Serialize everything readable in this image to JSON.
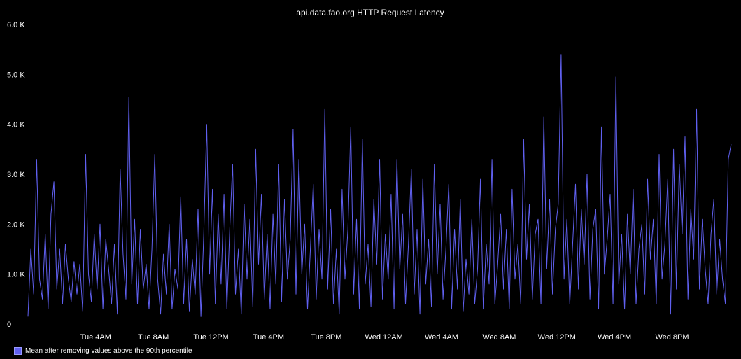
{
  "chart_data": {
    "type": "line",
    "title": "api.data.fao.org HTTP Request Latency",
    "ylim": [
      0,
      6000
    ],
    "y_ticks": [
      {
        "value": 0,
        "label": "0"
      },
      {
        "value": 1000,
        "label": "1.0 K"
      },
      {
        "value": 2000,
        "label": "2.0 K"
      },
      {
        "value": 3000,
        "label": "3.0 K"
      },
      {
        "value": 4000,
        "label": "4.0 K"
      },
      {
        "value": 5000,
        "label": "5.0 K"
      },
      {
        "value": 6000,
        "label": "6.0 K"
      }
    ],
    "xlim": [
      -4.7,
      44.2
    ],
    "x_ticks": [
      {
        "value": 0,
        "label": "Tue  4AM"
      },
      {
        "value": 4,
        "label": "Tue  8AM"
      },
      {
        "value": 8,
        "label": "Tue 12PM"
      },
      {
        "value": 12,
        "label": "Tue  4PM"
      },
      {
        "value": 16,
        "label": "Tue  8PM"
      },
      {
        "value": 20,
        "label": "Wed 12AM"
      },
      {
        "value": 24,
        "label": "Wed  4AM"
      },
      {
        "value": 28,
        "label": "Wed  8AM"
      },
      {
        "value": 32,
        "label": "Wed 12PM"
      },
      {
        "value": 36,
        "label": "Wed  4PM"
      },
      {
        "value": 40,
        "label": "Wed  8PM"
      }
    ],
    "series": [
      {
        "name": "Mean after removing values above the 90th percentile",
        "color": "#6060f0",
        "points": [
          [
            -4.7,
            150
          ],
          [
            -4.5,
            1500
          ],
          [
            -4.3,
            600
          ],
          [
            -4.1,
            3300
          ],
          [
            -3.9,
            900
          ],
          [
            -3.7,
            500
          ],
          [
            -3.5,
            1800
          ],
          [
            -3.3,
            300
          ],
          [
            -3.1,
            2200
          ],
          [
            -2.9,
            2850
          ],
          [
            -2.7,
            700
          ],
          [
            -2.5,
            1500
          ],
          [
            -2.3,
            400
          ],
          [
            -2.1,
            1600
          ],
          [
            -1.9,
            900
          ],
          [
            -1.7,
            450
          ],
          [
            -1.5,
            1250
          ],
          [
            -1.3,
            600
          ],
          [
            -1.1,
            1200
          ],
          [
            -0.9,
            250
          ],
          [
            -0.7,
            3400
          ],
          [
            -0.5,
            1000
          ],
          [
            -0.3,
            450
          ],
          [
            -0.1,
            1800
          ],
          [
            0.1,
            700
          ],
          [
            0.3,
            2000
          ],
          [
            0.5,
            300
          ],
          [
            0.7,
            1700
          ],
          [
            0.9,
            1100
          ],
          [
            1.1,
            400
          ],
          [
            1.3,
            1600
          ],
          [
            1.5,
            200
          ],
          [
            1.7,
            3100
          ],
          [
            1.9,
            1400
          ],
          [
            2.1,
            500
          ],
          [
            2.3,
            4550
          ],
          [
            2.5,
            800
          ],
          [
            2.7,
            2100
          ],
          [
            2.9,
            400
          ],
          [
            3.1,
            1900
          ],
          [
            3.3,
            700
          ],
          [
            3.5,
            1200
          ],
          [
            3.7,
            300
          ],
          [
            3.9,
            1500
          ],
          [
            4.1,
            3400
          ],
          [
            4.3,
            900
          ],
          [
            4.5,
            200
          ],
          [
            4.7,
            1400
          ],
          [
            4.9,
            600
          ],
          [
            5.1,
            2000
          ],
          [
            5.3,
            300
          ],
          [
            5.5,
            1100
          ],
          [
            5.7,
            700
          ],
          [
            5.9,
            2550
          ],
          [
            6.1,
            400
          ],
          [
            6.3,
            1700
          ],
          [
            6.5,
            250
          ],
          [
            6.7,
            1300
          ],
          [
            6.9,
            600
          ],
          [
            7.1,
            2300
          ],
          [
            7.3,
            150
          ],
          [
            7.5,
            1800
          ],
          [
            7.7,
            4000
          ],
          [
            7.9,
            1000
          ],
          [
            8.1,
            2700
          ],
          [
            8.3,
            400
          ],
          [
            8.5,
            2200
          ],
          [
            8.7,
            800
          ],
          [
            8.9,
            2600
          ],
          [
            9.1,
            300
          ],
          [
            9.3,
            1900
          ],
          [
            9.5,
            3200
          ],
          [
            9.7,
            600
          ],
          [
            9.9,
            1500
          ],
          [
            10.1,
            200
          ],
          [
            10.3,
            2400
          ],
          [
            10.5,
            900
          ],
          [
            10.7,
            2100
          ],
          [
            10.9,
            350
          ],
          [
            11.1,
            3500
          ],
          [
            11.3,
            1200
          ],
          [
            11.5,
            2600
          ],
          [
            11.7,
            500
          ],
          [
            11.9,
            1800
          ],
          [
            12.1,
            300
          ],
          [
            12.3,
            2200
          ],
          [
            12.5,
            800
          ],
          [
            12.7,
            3200
          ],
          [
            12.9,
            450
          ],
          [
            13.1,
            2500
          ],
          [
            13.3,
            900
          ],
          [
            13.5,
            1700
          ],
          [
            13.7,
            3900
          ],
          [
            13.9,
            600
          ],
          [
            14.1,
            3300
          ],
          [
            14.3,
            1000
          ],
          [
            14.5,
            2000
          ],
          [
            14.7,
            300
          ],
          [
            14.9,
            1500
          ],
          [
            15.1,
            2800
          ],
          [
            15.3,
            500
          ],
          [
            15.5,
            1900
          ],
          [
            15.7,
            900
          ],
          [
            15.9,
            4300
          ],
          [
            16.1,
            700
          ],
          [
            16.3,
            2300
          ],
          [
            16.5,
            400
          ],
          [
            16.7,
            1500
          ],
          [
            16.9,
            200
          ],
          [
            17.1,
            2700
          ],
          [
            17.3,
            900
          ],
          [
            17.5,
            1900
          ],
          [
            17.7,
            3950
          ],
          [
            17.9,
            600
          ],
          [
            18.1,
            2100
          ],
          [
            18.3,
            300
          ],
          [
            18.5,
            3700
          ],
          [
            18.7,
            800
          ],
          [
            18.9,
            1600
          ],
          [
            19.1,
            350
          ],
          [
            19.3,
            2500
          ],
          [
            19.5,
            1200
          ],
          [
            19.7,
            3300
          ],
          [
            19.9,
            500
          ],
          [
            20.1,
            1800
          ],
          [
            20.3,
            900
          ],
          [
            20.5,
            2600
          ],
          [
            20.7,
            300
          ],
          [
            20.9,
            3300
          ],
          [
            21.1,
            1100
          ],
          [
            21.3,
            2200
          ],
          [
            21.5,
            400
          ],
          [
            21.7,
            1600
          ],
          [
            21.9,
            3100
          ],
          [
            22.1,
            600
          ],
          [
            22.3,
            1900
          ],
          [
            22.5,
            200
          ],
          [
            22.7,
            2900
          ],
          [
            22.9,
            800
          ],
          [
            23.1,
            1700
          ],
          [
            23.3,
            350
          ],
          [
            23.5,
            3200
          ],
          [
            23.7,
            1000
          ],
          [
            23.9,
            2400
          ],
          [
            24.1,
            500
          ],
          [
            24.3,
            1500
          ],
          [
            24.5,
            2800
          ],
          [
            24.7,
            300
          ],
          [
            24.9,
            1900
          ],
          [
            25.1,
            700
          ],
          [
            25.3,
            2500
          ],
          [
            25.5,
            250
          ],
          [
            25.7,
            1300
          ],
          [
            25.9,
            600
          ],
          [
            26.1,
            2100
          ],
          [
            26.3,
            400
          ],
          [
            26.5,
            1100
          ],
          [
            26.7,
            2900
          ],
          [
            26.9,
            300
          ],
          [
            27.1,
            1600
          ],
          [
            27.3,
            800
          ],
          [
            27.5,
            3300
          ],
          [
            27.7,
            400
          ],
          [
            27.9,
            1200
          ],
          [
            28.1,
            2200
          ],
          [
            28.3,
            700
          ],
          [
            28.5,
            1900
          ],
          [
            28.7,
            300
          ],
          [
            28.9,
            2700
          ],
          [
            29.1,
            900
          ],
          [
            29.3,
            1600
          ],
          [
            29.5,
            400
          ],
          [
            29.7,
            3700
          ],
          [
            29.9,
            1300
          ],
          [
            30.1,
            2400
          ],
          [
            30.3,
            500
          ],
          [
            30.5,
            1800
          ],
          [
            30.7,
            2100
          ],
          [
            30.9,
            400
          ],
          [
            31.1,
            4150
          ],
          [
            31.3,
            1100
          ],
          [
            31.5,
            2500
          ],
          [
            31.7,
            600
          ],
          [
            31.9,
            1900
          ],
          [
            32.1,
            2400
          ],
          [
            32.3,
            5400
          ],
          [
            32.5,
            900
          ],
          [
            32.7,
            2100
          ],
          [
            32.9,
            400
          ],
          [
            33.1,
            1600
          ],
          [
            33.3,
            2800
          ],
          [
            33.5,
            700
          ],
          [
            33.7,
            2300
          ],
          [
            33.9,
            1200
          ],
          [
            34.1,
            3000
          ],
          [
            34.3,
            500
          ],
          [
            34.5,
            1900
          ],
          [
            34.7,
            2300
          ],
          [
            34.9,
            300
          ],
          [
            35.1,
            3950
          ],
          [
            35.3,
            1000
          ],
          [
            35.5,
            1700
          ],
          [
            35.7,
            2600
          ],
          [
            35.9,
            400
          ],
          [
            36.1,
            4950
          ],
          [
            36.3,
            800
          ],
          [
            36.5,
            1800
          ],
          [
            36.7,
            300
          ],
          [
            36.9,
            2200
          ],
          [
            37.1,
            1000
          ],
          [
            37.3,
            2700
          ],
          [
            37.5,
            400
          ],
          [
            37.7,
            1500
          ],
          [
            37.9,
            2000
          ],
          [
            38.1,
            600
          ],
          [
            38.3,
            2900
          ],
          [
            38.5,
            1300
          ],
          [
            38.7,
            2100
          ],
          [
            38.9,
            400
          ],
          [
            39.1,
            3400
          ],
          [
            39.3,
            900
          ],
          [
            39.5,
            1600
          ],
          [
            39.7,
            2900
          ],
          [
            39.9,
            200
          ],
          [
            40.1,
            3500
          ],
          [
            40.3,
            700
          ],
          [
            40.5,
            3200
          ],
          [
            40.7,
            1800
          ],
          [
            40.9,
            3750
          ],
          [
            41.1,
            500
          ],
          [
            41.3,
            2300
          ],
          [
            41.5,
            1300
          ],
          [
            41.7,
            4300
          ],
          [
            41.9,
            700
          ],
          [
            42.1,
            2100
          ],
          [
            42.3,
            1100
          ],
          [
            42.5,
            400
          ],
          [
            42.7,
            1800
          ],
          [
            42.9,
            2500
          ],
          [
            43.1,
            600
          ],
          [
            43.3,
            1700
          ],
          [
            43.5,
            900
          ],
          [
            43.7,
            400
          ],
          [
            43.9,
            3300
          ],
          [
            44.1,
            3600
          ]
        ]
      }
    ]
  }
}
